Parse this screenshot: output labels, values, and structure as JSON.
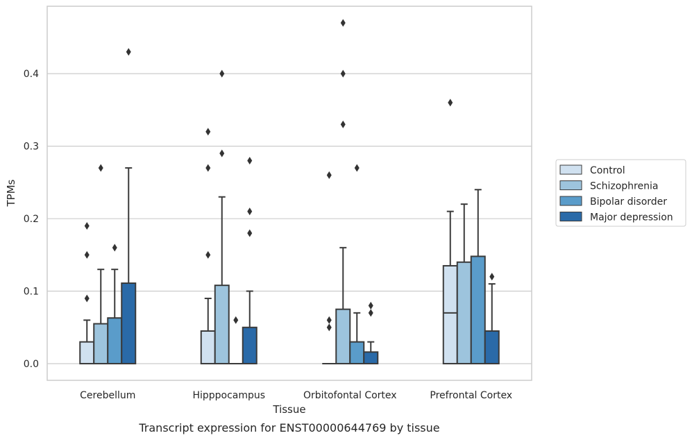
{
  "chart_data": {
    "type": "boxplot",
    "title": "",
    "caption": "Transcript expression for ENST00000644769 by tissue",
    "xlabel": "Tissue",
    "ylabel": "TPMs",
    "ylim": [
      -0.023,
      0.493
    ],
    "yticks": [
      "0.0",
      "0.1",
      "0.2",
      "0.3",
      "0.4"
    ],
    "ytick_values": [
      0.0,
      0.1,
      0.2,
      0.3,
      0.4
    ],
    "grid": "horizontal",
    "legend_position": "right, outside plot",
    "categories": [
      "Cerebellum",
      "Hipppocampus",
      "Orbitofontal Cortex",
      "Prefrontal Cortex"
    ],
    "series": [
      {
        "name": "Control",
        "color": "#d0e1f0",
        "boxes": [
          {
            "q1": 0.0,
            "median": 0.0,
            "q3": 0.03,
            "whislo": 0.0,
            "whishi": 0.06,
            "fliers": [
              0.09,
              0.15,
              0.19
            ]
          },
          {
            "q1": 0.0,
            "median": 0.0,
            "q3": 0.045,
            "whislo": 0.0,
            "whishi": 0.09,
            "fliers": [
              0.15,
              0.27,
              0.32
            ]
          },
          {
            "q1": 0.0,
            "median": 0.0,
            "q3": 0.0,
            "whislo": 0.0,
            "whishi": 0.0,
            "fliers": [
              0.05,
              0.06,
              0.26
            ]
          },
          {
            "q1": 0.0,
            "median": 0.07,
            "q3": 0.135,
            "whislo": 0.0,
            "whishi": 0.21,
            "fliers": [
              0.36
            ]
          }
        ]
      },
      {
        "name": "Schizophrenia",
        "color": "#9dc4dd",
        "boxes": [
          {
            "q1": 0.0,
            "median": 0.0,
            "q3": 0.055,
            "whislo": 0.0,
            "whishi": 0.13,
            "fliers": [
              0.27
            ]
          },
          {
            "q1": 0.0,
            "median": 0.0,
            "q3": 0.108,
            "whislo": 0.0,
            "whishi": 0.23,
            "fliers": [
              0.29,
              0.4
            ]
          },
          {
            "q1": 0.0,
            "median": 0.0,
            "q3": 0.075,
            "whislo": 0.0,
            "whishi": 0.16,
            "fliers": [
              0.33,
              0.4,
              0.47
            ]
          },
          {
            "q1": 0.0,
            "median": 0.0,
            "q3": 0.14,
            "whislo": 0.0,
            "whishi": 0.22,
            "fliers": []
          }
        ]
      },
      {
        "name": "Bipolar disorder",
        "color": "#5a9cca",
        "boxes": [
          {
            "q1": 0.0,
            "median": 0.0,
            "q3": 0.063,
            "whislo": 0.0,
            "whishi": 0.13,
            "fliers": [
              0.16
            ]
          },
          {
            "q1": 0.0,
            "median": 0.0,
            "q3": 0.0,
            "whislo": 0.0,
            "whishi": 0.0,
            "fliers": [
              0.06
            ]
          },
          {
            "q1": 0.0,
            "median": 0.0,
            "q3": 0.03,
            "whislo": 0.0,
            "whishi": 0.07,
            "fliers": [
              0.27
            ]
          },
          {
            "q1": 0.0,
            "median": 0.0,
            "q3": 0.148,
            "whislo": 0.0,
            "whishi": 0.24,
            "fliers": []
          }
        ]
      },
      {
        "name": "Major depression",
        "color": "#2a6aa8",
        "boxes": [
          {
            "q1": 0.0,
            "median": 0.0,
            "q3": 0.111,
            "whislo": 0.0,
            "whishi": 0.27,
            "fliers": [
              0.43
            ]
          },
          {
            "q1": 0.0,
            "median": 0.0,
            "q3": 0.05,
            "whislo": 0.0,
            "whishi": 0.1,
            "fliers": [
              0.18,
              0.21,
              0.28
            ]
          },
          {
            "q1": 0.0,
            "median": 0.0,
            "q3": 0.016,
            "whislo": 0.0,
            "whishi": 0.03,
            "fliers": [
              0.07,
              0.08
            ]
          },
          {
            "q1": 0.0,
            "median": 0.0,
            "q3": 0.045,
            "whislo": 0.0,
            "whishi": 0.11,
            "fliers": [
              0.12
            ]
          }
        ]
      }
    ]
  }
}
